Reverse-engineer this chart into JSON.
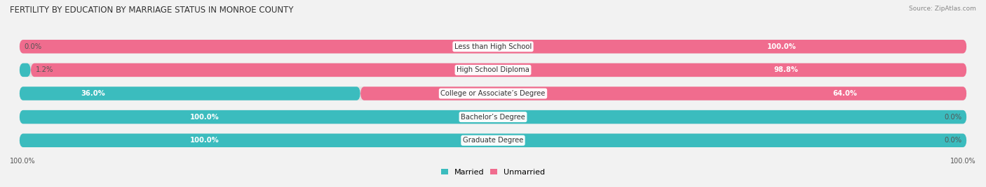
{
  "title": "FERTILITY BY EDUCATION BY MARRIAGE STATUS IN MONROE COUNTY",
  "source": "Source: ZipAtlas.com",
  "categories": [
    "Less than High School",
    "High School Diploma",
    "College or Associate’s Degree",
    "Bachelor’s Degree",
    "Graduate Degree"
  ],
  "married": [
    0.0,
    1.2,
    36.0,
    100.0,
    100.0
  ],
  "unmarried": [
    100.0,
    98.8,
    64.0,
    0.0,
    0.0
  ],
  "married_color": "#3bbcbe",
  "unmarried_color": "#f06c8e",
  "unmarried_light_color": "#f5a0bc",
  "bg_color": "#f2f2f2",
  "bar_bg_color": "#e2e2e2",
  "bar_height": 0.58,
  "label_fontsize": 7.2,
  "title_fontsize": 8.5,
  "legend_fontsize": 8,
  "axis_label_fontsize": 7
}
